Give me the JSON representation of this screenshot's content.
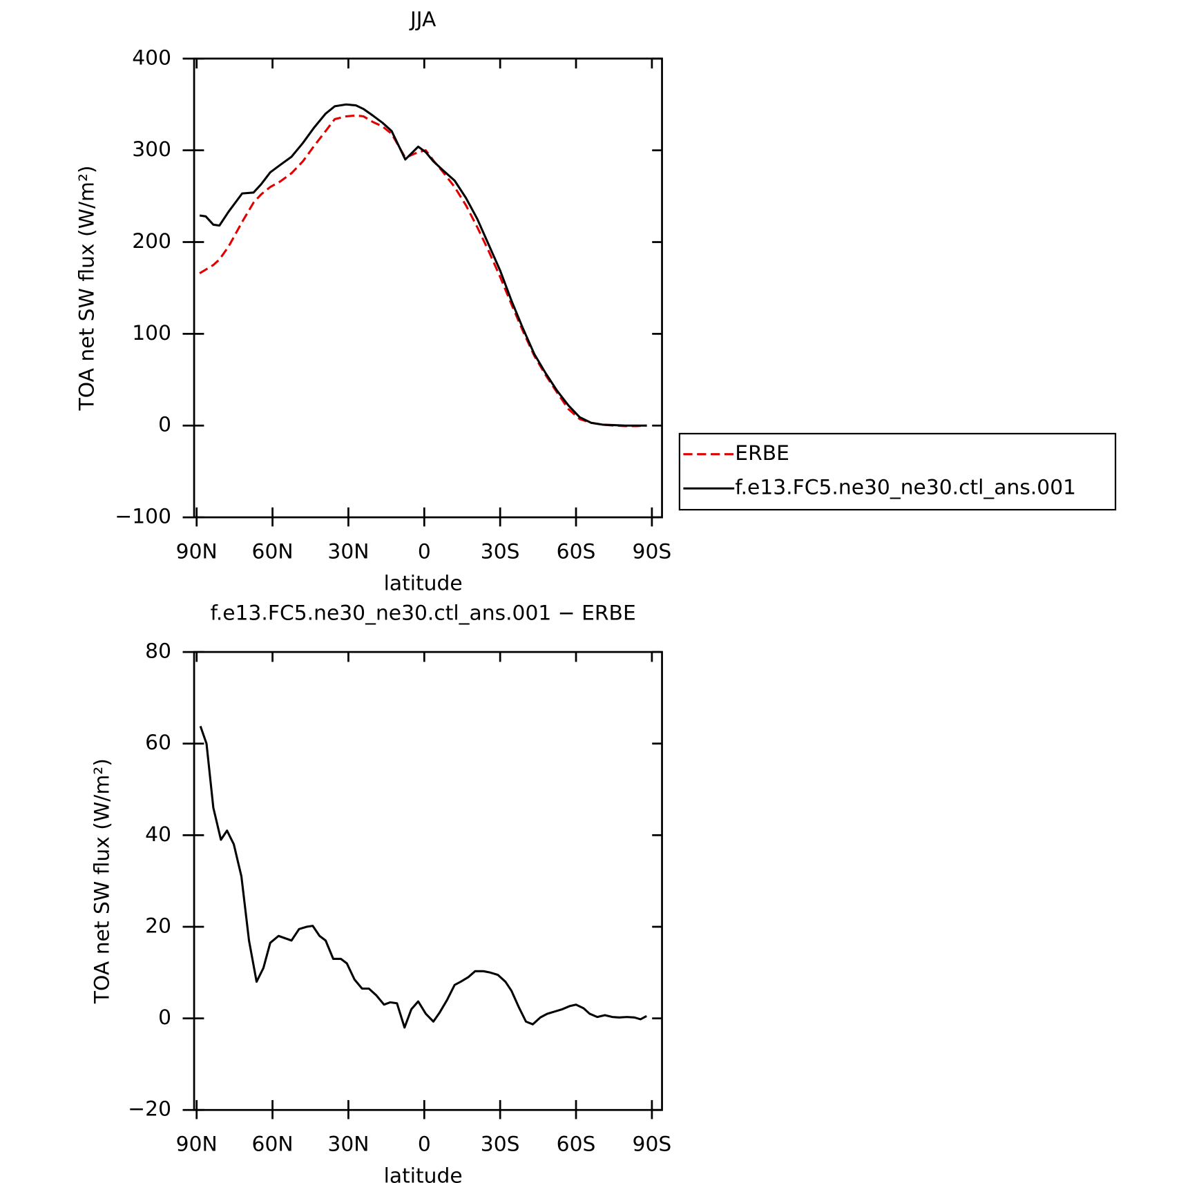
{
  "chart_data": [
    {
      "type": "line",
      "title": "JJA",
      "xlabel": "latitude",
      "ylabel": "TOA net SW flux (W/m²)",
      "x": [
        88.8,
        86.4,
        83.4,
        81,
        77.4,
        72,
        67.5,
        64.5,
        60.9,
        57,
        52.5,
        48,
        43.5,
        39,
        35.4,
        30.9,
        27,
        24,
        20.4,
        16.5,
        12.9,
        7.5,
        2.4,
        -0.6,
        -3.6,
        -7.5,
        -12,
        -16.5,
        -21,
        -25.5,
        -30,
        -34.5,
        -39,
        -43.5,
        -48,
        -52.5,
        -57,
        -61.5,
        -66,
        -70.5,
        -75,
        -79.5,
        -84,
        -88
      ],
      "series": [
        {
          "name": "ERBE",
          "color": "#e00000",
          "dashed": true,
          "values": [
            166,
            170,
            175,
            181,
            195,
            222,
            243,
            252,
            260,
            266,
            275,
            288,
            305,
            321,
            334,
            337,
            338,
            337,
            331,
            326,
            318,
            292,
            298,
            300,
            289,
            276,
            260,
            240,
            216,
            190,
            162,
            132,
            103,
            76,
            55,
            36,
            18,
            7,
            3,
            1,
            0,
            -0.5,
            -0.5,
            0
          ]
        },
        {
          "name": "f.e13.FC5.ne30_ne30.ctl_ans.001",
          "color": "#000000",
          "dashed": false,
          "values": [
            229,
            228,
            219,
            218,
            233,
            253,
            254,
            263,
            276,
            284,
            293,
            308,
            325,
            340,
            348,
            350,
            349,
            345,
            338,
            330,
            321,
            290,
            304,
            298,
            288,
            278,
            267,
            248,
            225,
            197,
            169,
            136,
            106,
            78,
            57,
            38,
            22,
            9,
            3,
            1,
            0.5,
            0,
            0,
            0
          ]
        }
      ],
      "xlim": [
        91,
        -94
      ],
      "xticks": [
        {
          "value": 90,
          "label": "90N"
        },
        {
          "value": 60,
          "label": "60N"
        },
        {
          "value": 30,
          "label": "30N"
        },
        0,
        {
          "value": -30,
          "label": "30S"
        },
        {
          "value": -60,
          "label": "60S"
        },
        {
          "value": -90,
          "label": "90S"
        }
      ],
      "ylim": [
        -100,
        400
      ],
      "yticks": [
        {
          "value": -100,
          "label": "−100"
        },
        0,
        100,
        200,
        300,
        400
      ],
      "legend": "right"
    },
    {
      "type": "line",
      "title": "f.e13.FC5.ne30_ne30.ctl_ans.001 − ERBE",
      "xlabel": "latitude",
      "ylabel": "TOA net SW flux (W/m²)",
      "x": [
        88.5,
        86.1,
        83.4,
        80.4,
        78,
        75.3,
        72.3,
        69.3,
        66.3,
        63.6,
        60.9,
        57.6,
        52.5,
        49.5,
        46.5,
        44.1,
        41.4,
        39,
        36,
        33,
        30.6,
        27.6,
        24.6,
        21.9,
        18.9,
        15.9,
        13.5,
        10.8,
        7.8,
        5.1,
        2.4,
        -0.6,
        -3.6,
        -6,
        -9,
        -12,
        -14.4,
        -17.4,
        -20.1,
        -23.4,
        -26.1,
        -29.1,
        -32.1,
        -34.5,
        -37.5,
        -40.2,
        -42.9,
        -45.9,
        -48.6,
        -51.6,
        -54.6,
        -57.6,
        -60,
        -63,
        -65.4,
        -68.4,
        -71.4,
        -74.4,
        -77.1,
        -80.1,
        -83.1,
        -85.5,
        -87.9
      ],
      "series": [
        {
          "name": "f.e13.FC5.ne30_ne30.ctl_ans.001 − ERBE",
          "color": "#000000",
          "dashed": false,
          "values": [
            63.8,
            60,
            46,
            39,
            41,
            38,
            31,
            17,
            8,
            11,
            16.5,
            18,
            17,
            19.5,
            20,
            20.2,
            18,
            17,
            13,
            13,
            12,
            8.5,
            6.5,
            6.5,
            5,
            3,
            3.5,
            3.3,
            -2,
            2,
            3.7,
            1,
            -0.7,
            1.2,
            4,
            7.3,
            8,
            9,
            10.3,
            10.3,
            10,
            9.5,
            8,
            6,
            2.3,
            -0.7,
            -1.3,
            0.2,
            1,
            1.5,
            2,
            2.7,
            3,
            2.2,
            1,
            0.3,
            0.7,
            0.3,
            0.2,
            0.3,
            0.2,
            -0.2,
            0.5
          ]
        }
      ],
      "xlim": [
        91,
        -94
      ],
      "xticks": [
        {
          "value": 90,
          "label": "90N"
        },
        {
          "value": 60,
          "label": "60N"
        },
        {
          "value": 30,
          "label": "30N"
        },
        0,
        {
          "value": -30,
          "label": "30S"
        },
        {
          "value": -60,
          "label": "60S"
        },
        {
          "value": -90,
          "label": "90S"
        }
      ],
      "ylim": [
        -20,
        80
      ],
      "yticks": [
        {
          "value": -20,
          "label": "−20"
        },
        0,
        20,
        40,
        60,
        80
      ]
    }
  ]
}
